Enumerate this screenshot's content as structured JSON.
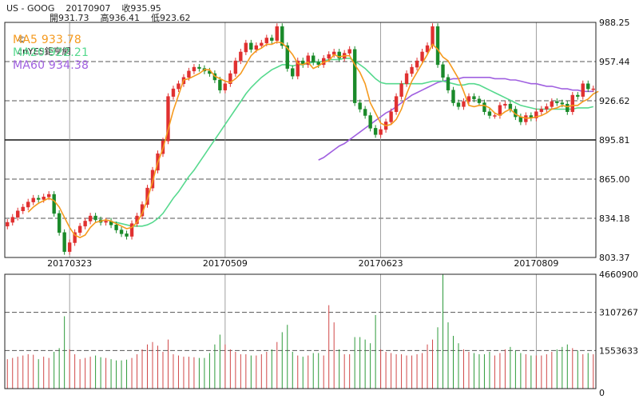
{
  "header": {
    "line1": "US - GOOG    20170907    收935.95",
    "line2": "開931.73    高936.41    低923.62"
  },
  "legend": {
    "source": "cnYES鉅亨網",
    "ma5": "MA5 933.78",
    "ma20": "MA20 922.21",
    "ma60": "MA60 934.38"
  },
  "colors": {
    "up": "#e03030",
    "down": "#1a8a2a",
    "ma5": "#f59a1e",
    "ma20": "#56d98e",
    "ma60": "#a060e0",
    "grid": "#555555",
    "frame": "#222222"
  },
  "chart_data": [
    {
      "type": "candlestick",
      "ylim": [
        803.37,
        988.25
      ],
      "ytick_labels": [
        "988.25",
        "957.44",
        "926.62",
        "895.81",
        "865.00",
        "834.18",
        "803.37"
      ],
      "ytick_values": [
        988.25,
        957.44,
        926.62,
        895.81,
        865.0,
        834.18,
        803.37
      ],
      "xtick_labels": [
        "20170323",
        "20170509",
        "20170623",
        "20170809"
      ],
      "xtick_index": [
        12,
        42,
        72,
        102
      ],
      "close": [
        831,
        835,
        840,
        843,
        847,
        850,
        849,
        851,
        853,
        838,
        823,
        808,
        815,
        823,
        828,
        832,
        836,
        833,
        831,
        832,
        829,
        825,
        822,
        820,
        830,
        836,
        845,
        858,
        872,
        885,
        895,
        930,
        936,
        940,
        945,
        950,
        953,
        952,
        950,
        948,
        943,
        935,
        940,
        948,
        958,
        965,
        972,
        967,
        970,
        972,
        976,
        974,
        985,
        970,
        952,
        946,
        958,
        955,
        962,
        957,
        955,
        960,
        963,
        965,
        960,
        964,
        967,
        925,
        920,
        915,
        905,
        900,
        904,
        910,
        918,
        930,
        940,
        948,
        953,
        958,
        965,
        970,
        985,
        955,
        945,
        935,
        925,
        922,
        926,
        930,
        928,
        925,
        918,
        915,
        915,
        923,
        924,
        920,
        914,
        910,
        915,
        913,
        918,
        920,
        922,
        926,
        925,
        924,
        918,
        931,
        930,
        940,
        936,
        936
      ],
      "ma5": [
        null,
        null,
        null,
        null,
        839,
        843,
        846,
        848,
        850,
        848,
        843,
        835,
        827,
        821,
        819,
        821,
        827,
        831,
        832,
        833,
        832,
        830,
        828,
        826,
        827,
        831,
        838,
        849,
        863,
        878,
        889,
        904,
        919,
        931,
        943,
        944,
        946,
        948,
        951,
        951,
        946,
        944,
        942,
        941,
        944,
        948,
        955,
        962,
        966,
        968,
        971,
        971,
        973,
        972,
        968,
        963,
        956,
        955,
        957,
        952,
        954,
        957,
        958,
        963,
        961,
        962,
        962,
        955,
        949,
        940,
        925,
        917,
        909,
        907,
        908,
        912,
        920,
        932,
        942,
        949,
        956,
        963,
        971,
        967,
        961,
        958,
        951,
        944,
        934,
        923,
        922,
        923,
        923,
        921,
        917,
        915,
        918,
        920,
        916,
        914,
        913,
        913,
        914,
        915,
        917,
        920,
        921,
        923,
        922,
        923,
        923,
        926,
        928,
        932,
        934
      ],
      "ma20": [
        null,
        null,
        null,
        null,
        null,
        null,
        null,
        null,
        null,
        null,
        null,
        null,
        null,
        null,
        null,
        null,
        null,
        null,
        null,
        null,
        831,
        831,
        830,
        829,
        828,
        828,
        828,
        829,
        831,
        834,
        838,
        844,
        850,
        855,
        861,
        867,
        872,
        878,
        884,
        890,
        896,
        902,
        908,
        914,
        920,
        926,
        932,
        937,
        941,
        945,
        948,
        951,
        953,
        955,
        955,
        954,
        955,
        955,
        956,
        957,
        957,
        958,
        959,
        959,
        959,
        960,
        960,
        958,
        955,
        952,
        948,
        944,
        941,
        940,
        940,
        940,
        940,
        940,
        940,
        940,
        940,
        941,
        942,
        942,
        942,
        941,
        940,
        939,
        939,
        940,
        940,
        939,
        937,
        935,
        933,
        931,
        929,
        927,
        925,
        923,
        922,
        921,
        920,
        920,
        920,
        920,
        920,
        920,
        920,
        920,
        921,
        921,
        921,
        922
      ],
      "ma60": [
        null,
        null,
        null,
        null,
        null,
        null,
        null,
        null,
        null,
        null,
        null,
        null,
        null,
        null,
        null,
        null,
        null,
        null,
        null,
        null,
        null,
        null,
        null,
        null,
        null,
        null,
        null,
        null,
        null,
        null,
        null,
        null,
        null,
        null,
        null,
        null,
        null,
        null,
        null,
        null,
        null,
        null,
        null,
        null,
        null,
        null,
        null,
        null,
        null,
        null,
        null,
        null,
        null,
        null,
        null,
        null,
        null,
        null,
        null,
        null,
        880,
        882,
        885,
        888,
        891,
        893,
        896,
        899,
        902,
        905,
        908,
        911,
        914,
        917,
        919,
        922,
        925,
        928,
        931,
        933,
        935,
        937,
        939,
        941,
        942,
        943,
        944,
        944,
        945,
        945,
        945,
        945,
        945,
        945,
        944,
        944,
        944,
        943,
        943,
        942,
        941,
        940,
        940,
        939,
        938,
        938,
        937,
        936,
        936,
        935,
        935,
        934,
        934,
        934
      ]
    },
    {
      "type": "bar",
      "ylim": [
        0,
        4660900
      ],
      "ytick_labels": [
        "4660900",
        "3107267",
        "1553633",
        "0"
      ],
      "ytick_values": [
        4660900,
        3107267,
        1553633,
        0
      ],
      "volume": [
        1200000,
        1250000,
        1300000,
        1350000,
        1400000,
        1380000,
        1200000,
        1300000,
        1250000,
        1500000,
        1650000,
        2950000,
        1600000,
        1400000,
        1200000,
        1250000,
        1300000,
        1350000,
        1280000,
        1250000,
        1200000,
        1150000,
        1150000,
        1180000,
        1250000,
        1400000,
        1600000,
        1800000,
        1900000,
        1750000,
        1500000,
        2000000,
        1400000,
        1350000,
        1300000,
        1300000,
        1280000,
        1250000,
        1250000,
        1450000,
        1800000,
        2200000,
        1800000,
        1600000,
        1500000,
        1400000,
        1400000,
        1350000,
        1350000,
        1400000,
        1500000,
        1600000,
        1900000,
        2300000,
        2600000,
        1500000,
        1350000,
        1300000,
        1350000,
        1450000,
        1450000,
        1350000,
        3400000,
        2700000,
        1600000,
        1400000,
        1400000,
        2100000,
        2100000,
        2000000,
        1850000,
        3000000,
        1600000,
        1500000,
        1450000,
        1400000,
        1400000,
        1350000,
        1350000,
        1400000,
        1450000,
        1800000,
        2000000,
        2500000,
        4660900,
        2700000,
        2150000,
        1850000,
        1600000,
        1500000,
        1450000,
        1400000,
        1400000,
        1500000,
        1350000,
        1450000,
        1600000,
        1700000,
        1550000,
        1450000,
        1400000,
        1350000,
        1350000,
        1350000,
        1400000,
        1500000,
        1600000,
        1700000,
        1800000,
        1650000,
        1550000,
        1400000,
        1450000,
        1400000
      ]
    }
  ]
}
